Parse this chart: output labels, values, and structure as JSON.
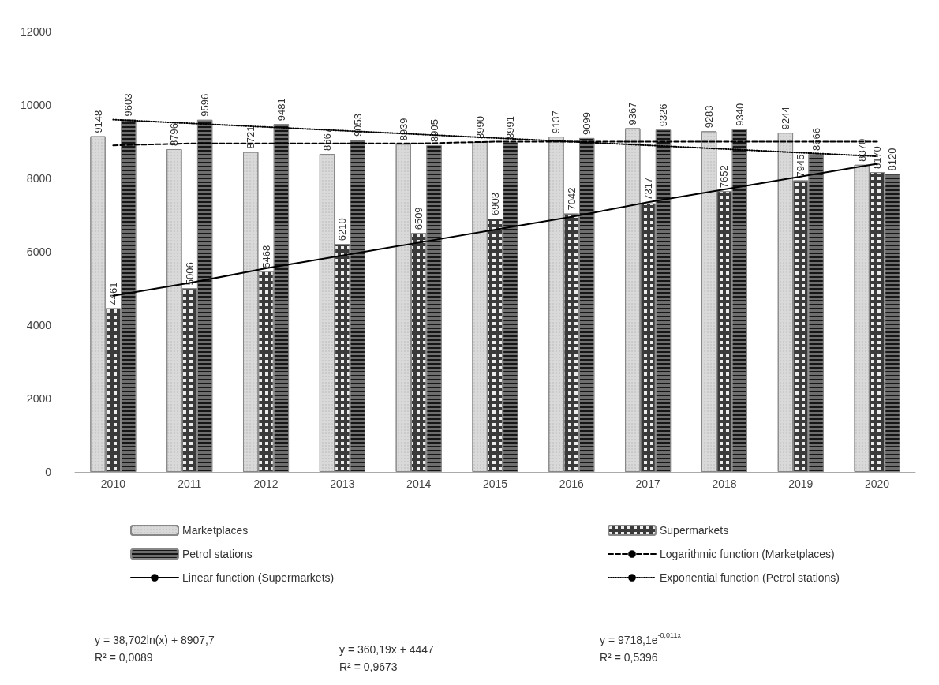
{
  "chart_data": {
    "type": "bar",
    "categories": [
      "2010",
      "2011",
      "2012",
      "2013",
      "2014",
      "2015",
      "2016",
      "2017",
      "2018",
      "2019",
      "2020"
    ],
    "series": [
      {
        "name": "Marketplaces",
        "color": "#d9d9d9",
        "values": [
          9148,
          8796,
          8721,
          8667,
          8939,
          8990,
          9137,
          9367,
          9283,
          9244,
          8370
        ],
        "data_labels": true
      },
      {
        "name": "Supermarkets",
        "color": "#3a3a3a",
        "values": [
          4461,
          5006,
          5468,
          6210,
          6509,
          6903,
          7042,
          7317,
          7652,
          7945,
          8170
        ],
        "data_labels": true
      },
      {
        "name": "Petrol stations",
        "color": "#6e6e6e",
        "values": [
          9603,
          9596,
          9481,
          9053,
          8905,
          8991,
          9099,
          9326,
          9340,
          8666,
          8120
        ],
        "data_labels": true
      },
      {
        "name": "Logarithmic function (Marketplaces)",
        "type": "line",
        "color": "#000000",
        "line_style": "dashed",
        "values": [
          8900,
          8950,
          8950,
          8950,
          8950,
          9000,
          9000,
          9000,
          9000,
          9000,
          9000
        ]
      },
      {
        "name": "Linear function (Supermarkets)",
        "type": "line",
        "color": "#000000",
        "line_style": "solid",
        "values": [
          4800,
          5150,
          5550,
          5900,
          6250,
          6600,
          6950,
          7350,
          7700,
          8050,
          8400
        ]
      },
      {
        "name": "Exponential function (Petrol stations)",
        "type": "line",
        "color": "#000000",
        "line_style": "dotted",
        "values": [
          9600,
          9500,
          9400,
          9300,
          9200,
          9100,
          9000,
          8900,
          8800,
          8700,
          8600
        ]
      }
    ],
    "ylim": [
      0,
      12000
    ],
    "yticks": [
      0,
      2000,
      4000,
      6000,
      8000,
      10000,
      12000
    ],
    "grid": false,
    "legend": "bottom",
    "marker": "none",
    "annotations": [
      "y = 38,702ln(x) + 8907,7\nR² = 0,0089",
      "y = 360,19x + 4447\nR² = 0,9673",
      "y = 9718,1e$^{-0,011x}$\nR² = 0,5396"
    ]
  }
}
